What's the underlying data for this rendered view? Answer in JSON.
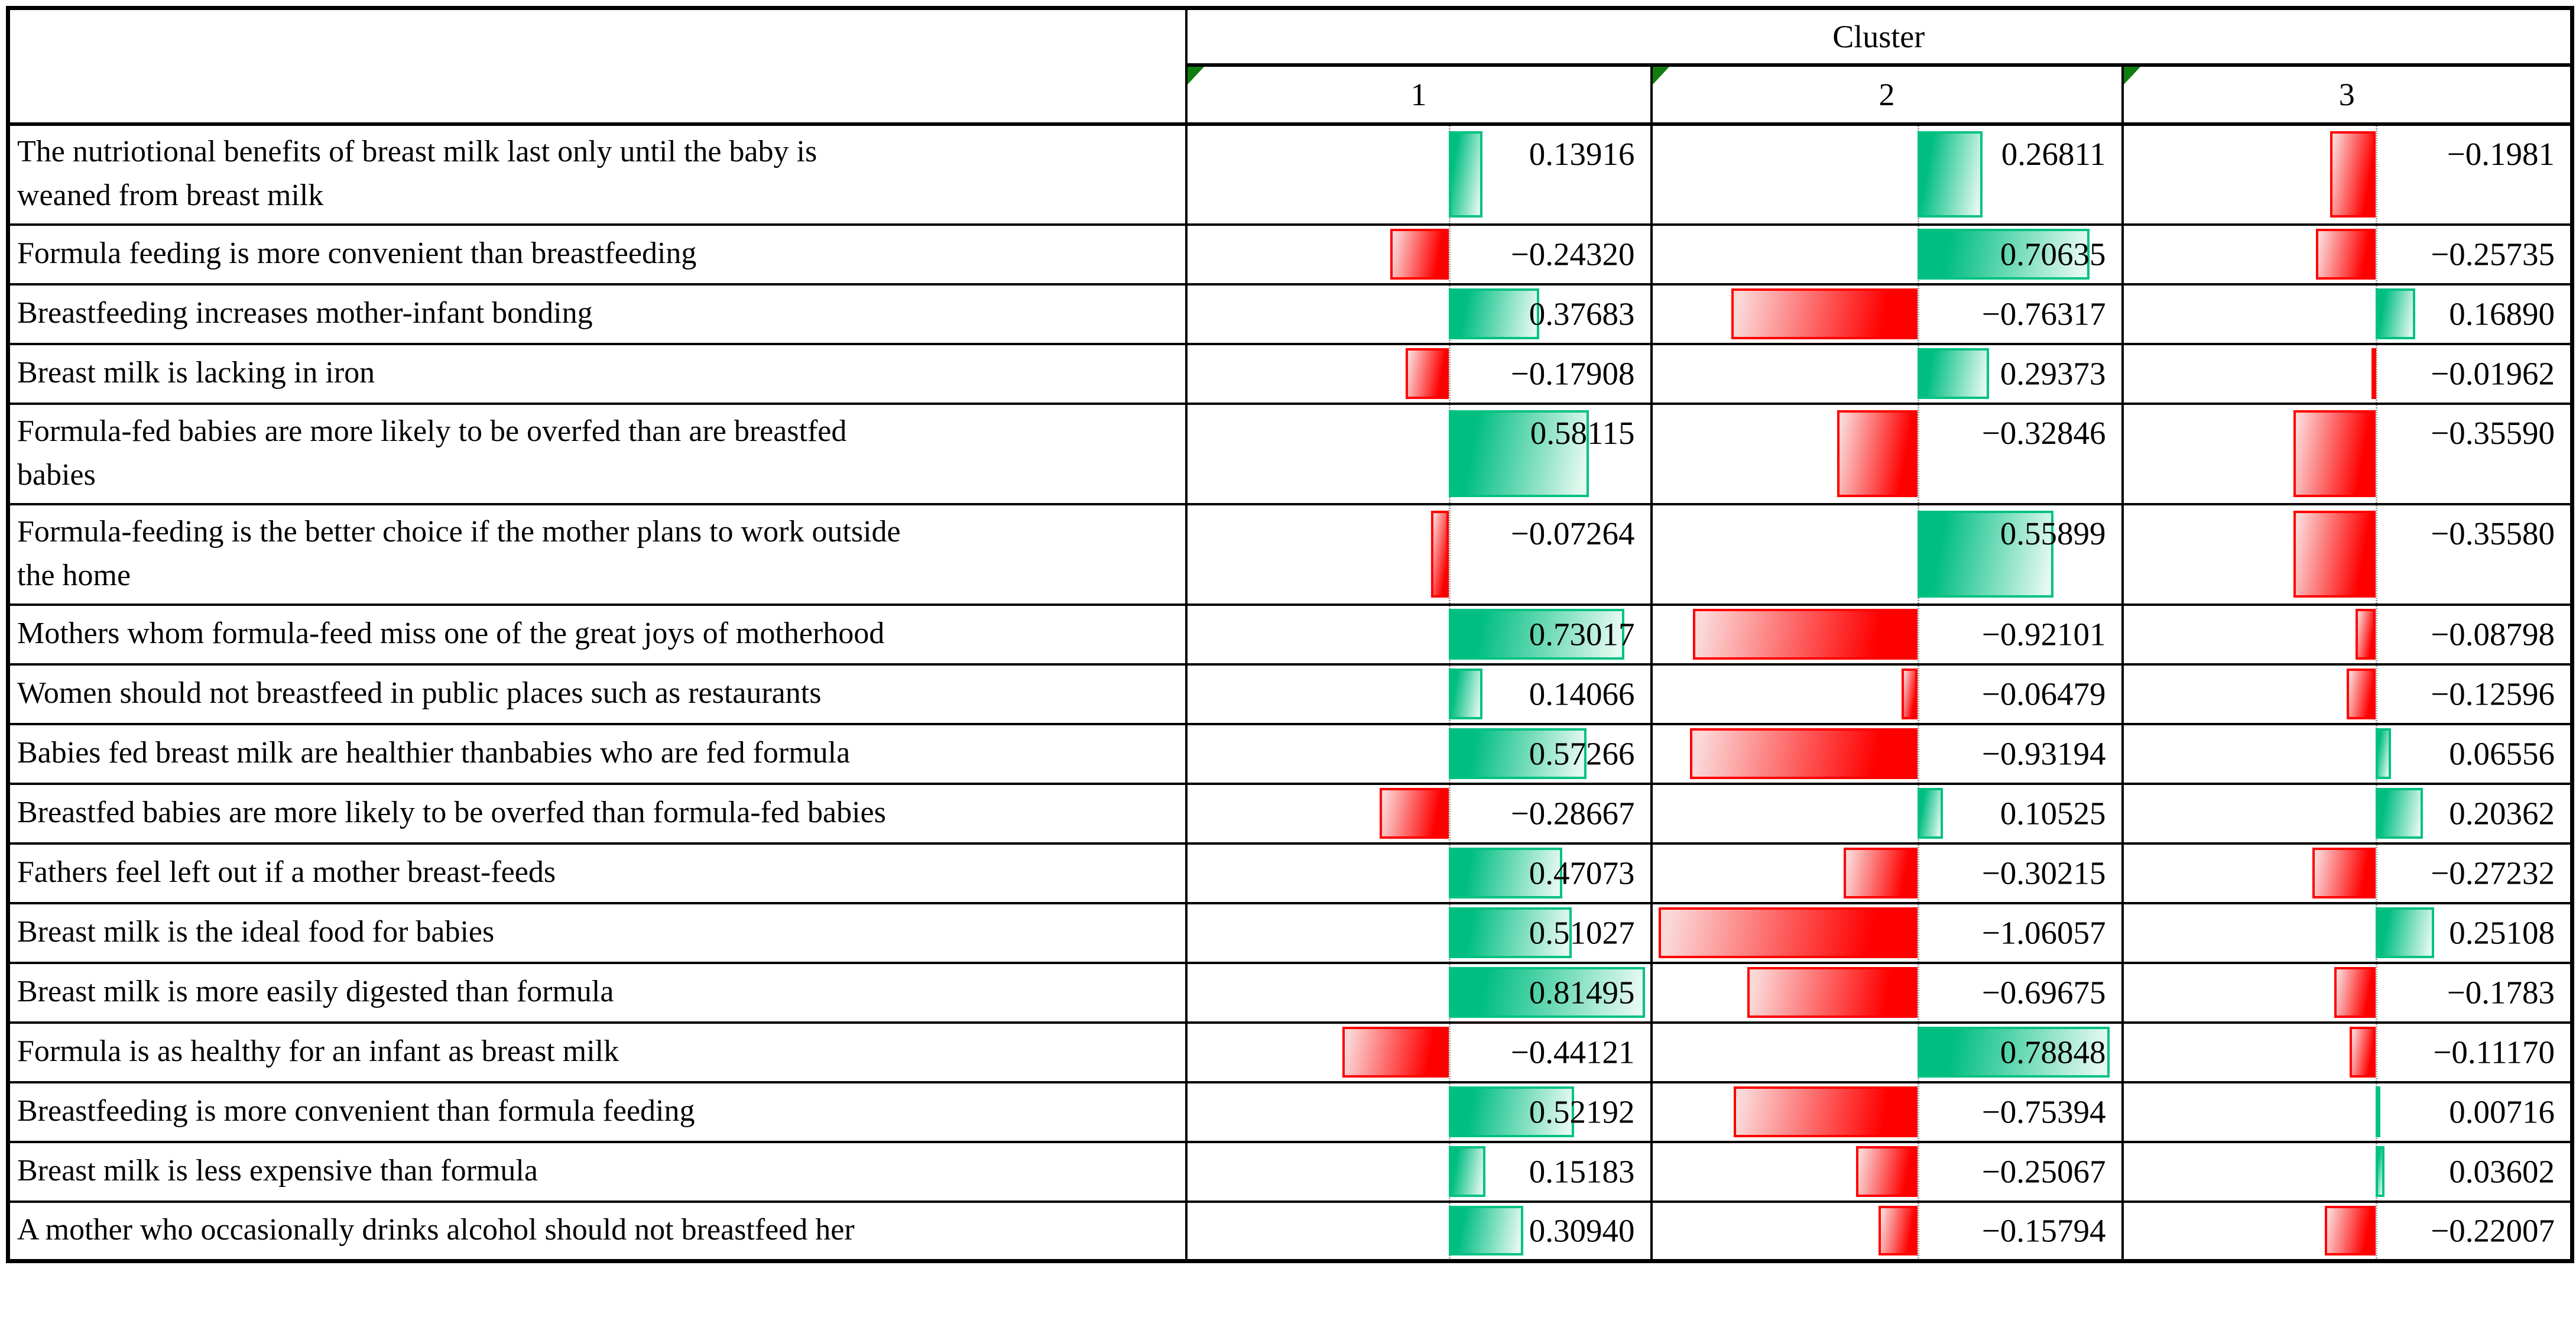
{
  "chart_data": {
    "type": "table",
    "title": "Cluster",
    "columns": [
      "1",
      "2",
      "3"
    ],
    "categories": [
      "The nutriotional benefits of breast milk last only until the baby is weaned from breast milk",
      "Formula feeding is more convenient than breastfeeding",
      "Breastfeeding increases mother-infant bonding",
      "Breast milk is lacking in iron",
      "Formula-fed babies are more likely to be overfed than are breastfed babies",
      "Formula-feeding is the better choice if the mother plans to work outside the home",
      "Mothers whom formula-feed miss one of the great joys of motherhood",
      "Women should not breastfeed in public places such as restaurants",
      "Babies fed breast milk are healthier thanbabies who are fed formula",
      "Breastfed babies are more likely to be overfed than formula-fed babies",
      "Fathers feel left out if a mother breast-feeds",
      "Breast milk is the ideal food for babies",
      "Breast milk is more easily digested than formula",
      "Formula is as healthy for an infant as breast milk",
      "Breastfeeding is more convenient than formula feeding",
      "Breast milk is less expensive than formula",
      "A mother who occasionally drinks alcohol should not breastfeed her"
    ],
    "row_lines": {
      "0": [
        "The nutriotional benefits of breast milk last only until the baby is",
        "weaned from breast milk"
      ],
      "4": [
        "Formula-fed babies are more likely to be overfed than are breastfed",
        "babies"
      ],
      "5": [
        "Formula-feeding is the better choice if the mother plans to work outside",
        "the home"
      ]
    },
    "two_line_rows": [
      0,
      4,
      5
    ],
    "series": [
      {
        "name": "1",
        "values": [
          0.13916,
          -0.2432,
          0.37683,
          -0.17908,
          0.58115,
          -0.07264,
          0.73017,
          0.14066,
          0.57266,
          -0.28667,
          0.47073,
          0.51027,
          0.81495,
          -0.44121,
          0.52192,
          0.15183,
          0.3094
        ],
        "display": [
          "0.13916",
          "−0.24320",
          "0.37683",
          "−0.17908",
          "0.58115",
          "−0.07264",
          "0.73017",
          "0.14066",
          "0.57266",
          "−0.28667",
          "0.47073",
          "0.51027",
          "0.81495",
          "−0.44121",
          "0.52192",
          "0.15183",
          "0.30940"
        ]
      },
      {
        "name": "2",
        "values": [
          0.26811,
          0.70635,
          -0.76317,
          0.29373,
          -0.32846,
          0.55899,
          -0.92101,
          -0.06479,
          -0.93194,
          0.10525,
          -0.30215,
          -1.06057,
          -0.69675,
          0.78848,
          -0.75394,
          -0.25067,
          -0.15794
        ],
        "display": [
          "0.26811",
          "0.70635",
          "−0.76317",
          "0.29373",
          "−0.32846",
          "0.55899",
          "−0.92101",
          "−0.06479",
          "−0.93194",
          "0.10525",
          "−0.30215",
          "−1.06057",
          "−0.69675",
          "0.78848",
          "−0.75394",
          "−0.25067",
          "−0.15794"
        ]
      },
      {
        "name": "3",
        "values": [
          -0.1981,
          -0.25735,
          0.1689,
          -0.01962,
          -0.3559,
          -0.3558,
          -0.08798,
          -0.12596,
          0.06556,
          0.20362,
          -0.27232,
          0.25108,
          -0.1783,
          -0.1117,
          0.00716,
          0.03602,
          -0.22007
        ],
        "display": [
          "−0.1981",
          "−0.25735",
          "0.16890",
          "−0.01962",
          "−0.35590",
          "−0.35580",
          "−0.08798",
          "−0.12596",
          "0.06556",
          "0.20362",
          "−0.27232",
          "0.25108",
          "−0.1783",
          "−0.11170",
          "0.00716",
          "0.03602",
          "−0.22007"
        ]
      }
    ],
    "axis": {
      "zero_fraction": 0.565,
      "unit_fraction": 0.52,
      "range": [
        -1.1,
        0.85
      ],
      "positive_color": "green",
      "negative_color": "red",
      "legend_position": "none",
      "grid": "table-borders"
    }
  },
  "colors": {
    "positive_bar_border": "#00C282",
    "positive_bar_solid": "#00BE82",
    "positive_bar_pale": "#E4F9F0",
    "negative_bar_border": "#FF0000",
    "negative_bar_solid": "#FF0000",
    "negative_bar_pale": "#FBD8D8",
    "corner_marker_green": "#0F7E0F",
    "axis_line_gray": "#9A9A9A",
    "grid_black": "#000000"
  }
}
